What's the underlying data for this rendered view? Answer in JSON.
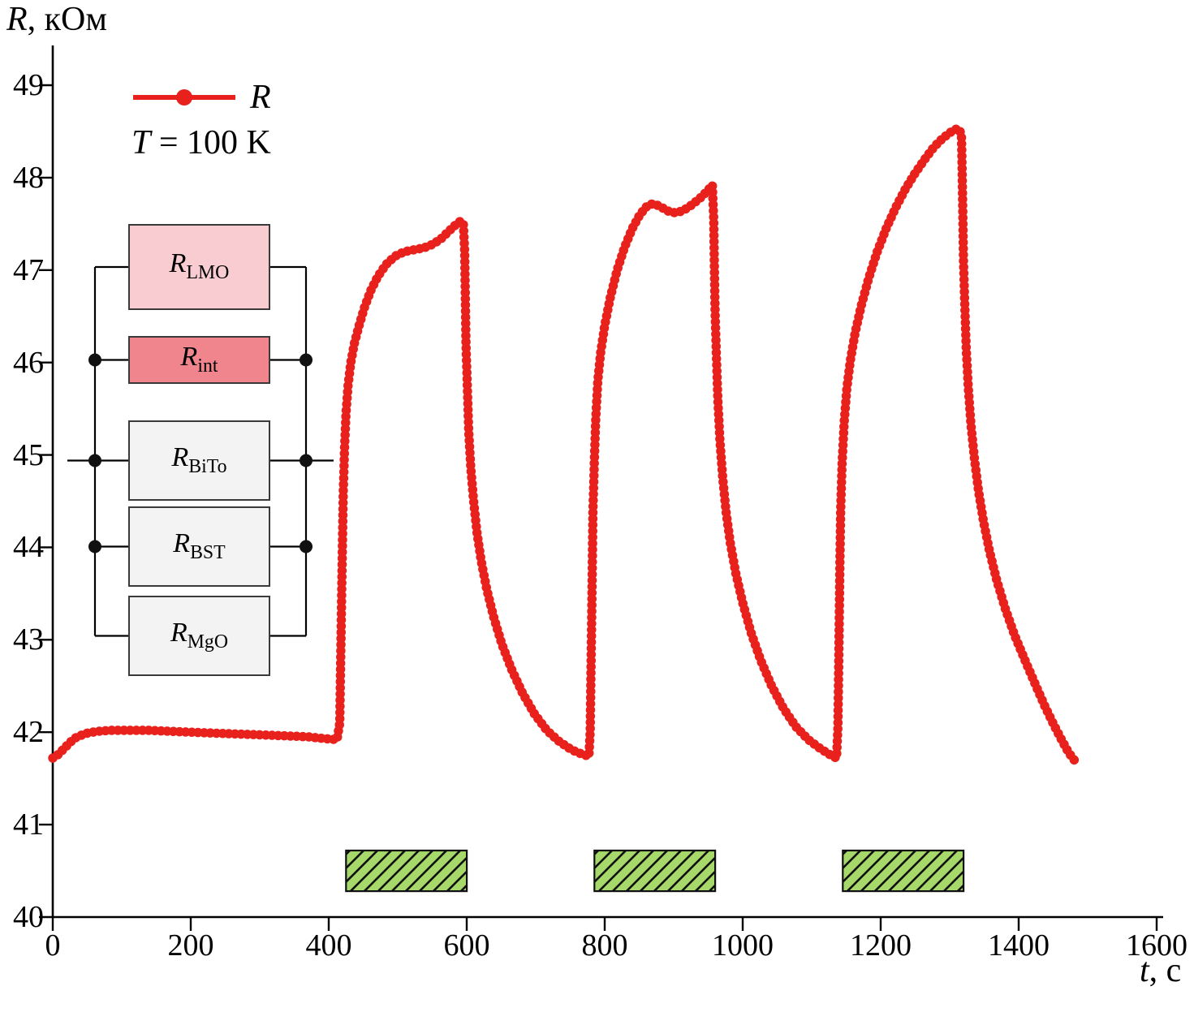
{
  "figure": {
    "y_axis_title": {
      "symbol": "R",
      "rest": ", кОм"
    },
    "x_axis_title": {
      "symbol": "t",
      "rest": ", с"
    }
  },
  "legend": {
    "series_symbol": "R",
    "condition_symbol": "T",
    "condition_rest": " = 100 K"
  },
  "circuit": {
    "resistors": [
      {
        "symbol": "R",
        "sub": "LMO",
        "fill": "#f8ccd1"
      },
      {
        "symbol": "R",
        "sub": "int",
        "fill": "#f0858e"
      },
      {
        "symbol": "R",
        "sub": "BiTo",
        "fill": "#f3f3f4"
      },
      {
        "symbol": "R",
        "sub": "BST",
        "fill": "#f3f3f4"
      },
      {
        "symbol": "R",
        "sub": "MgO",
        "fill": "#f3f3f4"
      }
    ]
  },
  "chart_data": {
    "type": "scatter",
    "title": "",
    "xlabel": "t, с",
    "ylabel": "R, кОм",
    "x_range": [
      0,
      1600
    ],
    "y_range": [
      40,
      49
    ],
    "x_ticks": [
      "0",
      "200",
      "400",
      "600",
      "800",
      "1000",
      "1200",
      "1400",
      "1600"
    ],
    "y_ticks": [
      "40",
      "41",
      "42",
      "43",
      "44",
      "45",
      "46",
      "47",
      "48",
      "49"
    ],
    "grid": false,
    "legend_position": "top-left",
    "series": [
      {
        "name": "R",
        "condition": "T = 100 K",
        "color": "#e8211d",
        "points": [
          [
            0,
            41.72
          ],
          [
            8,
            41.76
          ],
          [
            16,
            41.82
          ],
          [
            25,
            41.89
          ],
          [
            35,
            41.95
          ],
          [
            50,
            41.99
          ],
          [
            65,
            42.01
          ],
          [
            85,
            42.02
          ],
          [
            110,
            42.02
          ],
          [
            140,
            42.02
          ],
          [
            170,
            42.01
          ],
          [
            200,
            42.0
          ],
          [
            235,
            41.99
          ],
          [
            270,
            41.98
          ],
          [
            305,
            41.97
          ],
          [
            340,
            41.96
          ],
          [
            370,
            41.95
          ],
          [
            395,
            41.93
          ],
          [
            412,
            41.92
          ],
          [
            416,
            42.1
          ],
          [
            417,
            42.6
          ],
          [
            418,
            43.1
          ],
          [
            419,
            43.6
          ],
          [
            420,
            44.1
          ],
          [
            421,
            44.6
          ],
          [
            423,
            45.1
          ],
          [
            425,
            45.45
          ],
          [
            428,
            45.75
          ],
          [
            432,
            46.0
          ],
          [
            437,
            46.2
          ],
          [
            444,
            46.4
          ],
          [
            452,
            46.6
          ],
          [
            461,
            46.78
          ],
          [
            471,
            46.93
          ],
          [
            483,
            47.06
          ],
          [
            496,
            47.15
          ],
          [
            510,
            47.2
          ],
          [
            524,
            47.22
          ],
          [
            538,
            47.24
          ],
          [
            551,
            47.28
          ],
          [
            563,
            47.34
          ],
          [
            574,
            47.42
          ],
          [
            584,
            47.49
          ],
          [
            591,
            47.53
          ],
          [
            595,
            47.51
          ],
          [
            597,
            47.2
          ],
          [
            598,
            46.7
          ],
          [
            599,
            46.2
          ],
          [
            601,
            45.7
          ],
          [
            603,
            45.25
          ],
          [
            606,
            44.85
          ],
          [
            610,
            44.5
          ],
          [
            615,
            44.15
          ],
          [
            621,
            43.85
          ],
          [
            629,
            43.55
          ],
          [
            639,
            43.25
          ],
          [
            651,
            42.95
          ],
          [
            665,
            42.68
          ],
          [
            681,
            42.42
          ],
          [
            698,
            42.2
          ],
          [
            716,
            42.02
          ],
          [
            734,
            41.9
          ],
          [
            752,
            41.81
          ],
          [
            768,
            41.76
          ],
          [
            777,
            41.74
          ],
          [
            779,
            42.0
          ],
          [
            780,
            42.6
          ],
          [
            781,
            43.2
          ],
          [
            782,
            43.8
          ],
          [
            783,
            44.4
          ],
          [
            785,
            44.95
          ],
          [
            787,
            45.4
          ],
          [
            790,
            45.8
          ],
          [
            794,
            46.1
          ],
          [
            800,
            46.4
          ],
          [
            808,
            46.7
          ],
          [
            818,
            47.0
          ],
          [
            829,
            47.25
          ],
          [
            840,
            47.45
          ],
          [
            851,
            47.6
          ],
          [
            861,
            47.69
          ],
          [
            870,
            47.72
          ],
          [
            880,
            47.69
          ],
          [
            891,
            47.64
          ],
          [
            902,
            47.62
          ],
          [
            913,
            47.64
          ],
          [
            925,
            47.7
          ],
          [
            937,
            47.77
          ],
          [
            948,
            47.85
          ],
          [
            956,
            47.92
          ],
          [
            958,
            47.55
          ],
          [
            959,
            47.05
          ],
          [
            960,
            46.55
          ],
          [
            962,
            46.05
          ],
          [
            964,
            45.6
          ],
          [
            967,
            45.15
          ],
          [
            971,
            44.75
          ],
          [
            976,
            44.38
          ],
          [
            982,
            44.05
          ],
          [
            990,
            43.72
          ],
          [
            1000,
            43.4
          ],
          [
            1012,
            43.08
          ],
          [
            1026,
            42.78
          ],
          [
            1042,
            42.5
          ],
          [
            1059,
            42.26
          ],
          [
            1077,
            42.06
          ],
          [
            1095,
            41.92
          ],
          [
            1113,
            41.82
          ],
          [
            1128,
            41.75
          ],
          [
            1136,
            41.72
          ],
          [
            1138,
            42.05
          ],
          [
            1139,
            42.65
          ],
          [
            1140,
            43.25
          ],
          [
            1141,
            43.85
          ],
          [
            1142,
            44.4
          ],
          [
            1144,
            44.9
          ],
          [
            1147,
            45.35
          ],
          [
            1151,
            45.72
          ],
          [
            1156,
            46.02
          ],
          [
            1163,
            46.32
          ],
          [
            1172,
            46.62
          ],
          [
            1183,
            46.92
          ],
          [
            1195,
            47.2
          ],
          [
            1208,
            47.45
          ],
          [
            1222,
            47.68
          ],
          [
            1236,
            47.88
          ],
          [
            1250,
            48.05
          ],
          [
            1264,
            48.2
          ],
          [
            1277,
            48.33
          ],
          [
            1289,
            48.42
          ],
          [
            1299,
            48.48
          ],
          [
            1307,
            48.52
          ],
          [
            1313,
            48.53
          ],
          [
            1317,
            48.47
          ],
          [
            1318,
            48.1
          ],
          [
            1319,
            47.6
          ],
          [
            1320,
            47.1
          ],
          [
            1322,
            46.6
          ],
          [
            1324,
            46.15
          ],
          [
            1327,
            45.72
          ],
          [
            1331,
            45.32
          ],
          [
            1336,
            44.95
          ],
          [
            1342,
            44.6
          ],
          [
            1349,
            44.28
          ],
          [
            1358,
            43.95
          ],
          [
            1368,
            43.65
          ],
          [
            1380,
            43.35
          ],
          [
            1394,
            43.05
          ],
          [
            1409,
            42.78
          ],
          [
            1424,
            42.52
          ],
          [
            1438,
            42.28
          ],
          [
            1451,
            42.08
          ],
          [
            1462,
            41.92
          ],
          [
            1471,
            41.8
          ],
          [
            1478,
            41.72
          ],
          [
            1483,
            41.68
          ]
        ]
      }
    ],
    "annotations": {
      "light_on_intervals": {
        "description": "green hatched bars marking excitation intervals",
        "color": "#a6d96a",
        "hatch": true,
        "y_low": 40.28,
        "y_high": 40.72,
        "intervals": [
          [
            425,
            600
          ],
          [
            785,
            960
          ],
          [
            1145,
            1320
          ]
        ]
      }
    }
  }
}
